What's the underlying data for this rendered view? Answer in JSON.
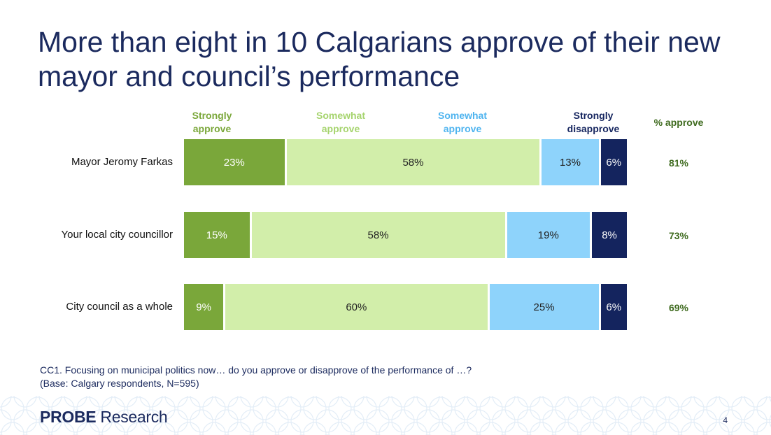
{
  "title": "More than eight in 10 Calgarians approve of their new mayor and council’s performance",
  "chart_data": {
    "type": "bar",
    "orientation": "horizontal",
    "stacked": true,
    "categories": [
      "Mayor Jeromy Farkas",
      "Your local city councillor",
      "City council as a whole"
    ],
    "series": [
      {
        "name": "Strongly approve",
        "values": [
          23,
          15,
          9
        ],
        "color": "#7aa73a",
        "text_color": "#ffffff"
      },
      {
        "name": "Somewhat approve",
        "values": [
          58,
          58,
          60
        ],
        "color": "#d2eeaa",
        "text_color": "#222222"
      },
      {
        "name": "Somewhat approve",
        "values": [
          13,
          19,
          25
        ],
        "color": "#8ed3fb",
        "text_color": "#222222"
      },
      {
        "name": "Strongly disapprove",
        "values": [
          6,
          8,
          6
        ],
        "color": "#14245e",
        "text_color": "#ffffff"
      }
    ],
    "series_header_lines": [
      [
        "Strongly",
        "approve"
      ],
      [
        "Somewhat",
        "approve"
      ],
      [
        "Somewhat",
        "approve"
      ],
      [
        "Strongly",
        "disapprove"
      ]
    ],
    "series_header_colors": [
      "#7aa73a",
      "#a6d46e",
      "#4fb4ef",
      "#14245e"
    ],
    "value_suffix": "%",
    "approve_header": "% approve",
    "approve_values": [
      "81%",
      "73%",
      "69%"
    ]
  },
  "footnote": {
    "question": "CC1. Focusing on municipal politics now… do you approve or disapprove of the performance of …?",
    "base": "(Base: Calgary respondents, N=595)"
  },
  "logo": {
    "bold": "PROBE",
    "regular": " Research"
  },
  "page_number": "4"
}
